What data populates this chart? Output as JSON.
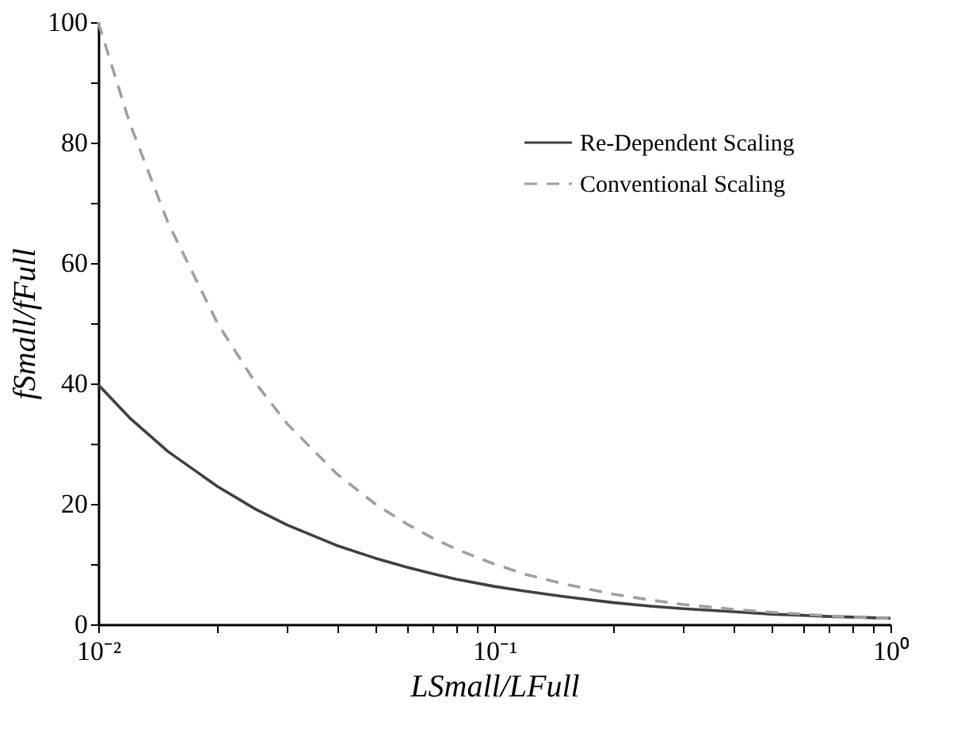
{
  "chart_data": {
    "type": "line",
    "xlabel": "LSmall/LFull",
    "ylabel": "fSmall/fFull",
    "log": "x",
    "grid": false,
    "legend": "top right",
    "marker": "none",
    "x": [
      0.01,
      0.012,
      0.015,
      0.02,
      0.025,
      0.03,
      0.04,
      0.05,
      0.06,
      0.07,
      0.08,
      0.1,
      0.12,
      0.15,
      0.2,
      0.25,
      0.3,
      0.4,
      0.5,
      0.6,
      0.7,
      0.8,
      1
    ],
    "series": [
      {
        "name": "Re-Dependent Scaling",
        "color": "#404040",
        "line_style": "solid",
        "values": [
          39.8,
          34.3,
          28.7,
          22.9,
          19.1,
          16.5,
          13.1,
          11.0,
          9.5,
          8.4,
          7.5,
          6.3,
          5.5,
          4.6,
          3.6,
          3.0,
          2.6,
          2.1,
          1.7,
          1.5,
          1.3,
          1.2,
          1.0
        ]
      },
      {
        "name": "Conventional Scaling",
        "color": "#a0a0a0",
        "line_style": "dashed",
        "values": [
          100,
          83.3,
          66.7,
          50,
          40,
          33.3,
          25,
          20,
          16.7,
          14.3,
          12.5,
          10,
          8.3,
          6.7,
          5,
          4,
          3.3,
          2.5,
          2,
          1.7,
          1.4,
          1.2,
          1
        ]
      }
    ],
    "xlim": [
      0.01,
      1
    ],
    "ylim": [
      0,
      100
    ],
    "xticks": [
      {
        "value": 0.01,
        "label": "10⁻²"
      },
      {
        "value": 0.02,
        "label": null
      },
      {
        "value": 0.03,
        "label": null
      },
      {
        "value": 0.04,
        "label": null
      },
      {
        "value": 0.05,
        "label": null
      },
      {
        "value": 0.06,
        "label": null
      },
      {
        "value": 0.07,
        "label": null
      },
      {
        "value": 0.08,
        "label": null
      },
      {
        "value": 0.09,
        "label": null
      },
      {
        "value": 0.1,
        "label": "10⁻¹"
      },
      {
        "value": 0.2,
        "label": null
      },
      {
        "value": 0.3,
        "label": null
      },
      {
        "value": 0.4,
        "label": null
      },
      {
        "value": 0.5,
        "label": null
      },
      {
        "value": 0.6,
        "label": null
      },
      {
        "value": 0.7,
        "label": null
      },
      {
        "value": 0.8,
        "label": null
      },
      {
        "value": 0.9,
        "label": null
      },
      {
        "value": 1,
        "label": "10⁰"
      }
    ],
    "yticks": [
      0,
      {
        "value": 10,
        "label": null
      },
      20,
      {
        "value": 30,
        "label": null
      },
      40,
      {
        "value": 50,
        "label": null
      },
      60,
      {
        "value": 70,
        "label": null
      },
      80,
      {
        "value": 90,
        "label": null
      },
      100
    ]
  }
}
